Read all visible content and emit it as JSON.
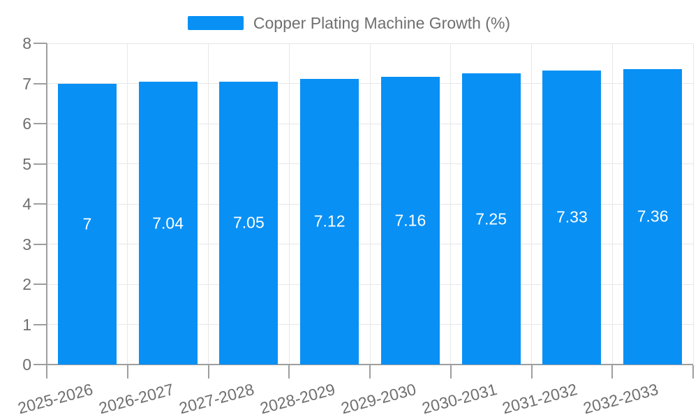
{
  "chart_data": {
    "type": "bar",
    "title": "",
    "legend": {
      "label": "Copper Plating Machine Growth (%)",
      "position": "top-center"
    },
    "categories": [
      "2025-2026",
      "2026-2027",
      "2027-2028",
      "2028-2029",
      "2029-2030",
      "2030-2031",
      "2031-2032",
      "2032-2033"
    ],
    "series": [
      {
        "name": "Copper Plating Machine Growth (%)",
        "values": [
          7,
          7.04,
          7.05,
          7.12,
          7.16,
          7.25,
          7.33,
          7.36
        ],
        "value_labels": [
          "7",
          "7.04",
          "7.05",
          "7.12",
          "7.16",
          "7.25",
          "7.33",
          "7.36"
        ]
      }
    ],
    "xlabel": "",
    "ylabel": "",
    "ylim": [
      0,
      8
    ],
    "yticks": [
      0,
      1,
      2,
      3,
      4,
      5,
      6,
      7,
      8
    ],
    "ytick_labels": [
      "0",
      "1",
      "2",
      "3",
      "4",
      "5",
      "6",
      "7",
      "8"
    ],
    "grid": "on",
    "x_label_rotation_deg": -15,
    "colors": {
      "bar": "#0890F5",
      "bar_label_text": "#ffffff",
      "axis_label_text": "#6F6F6F",
      "legend_text": "#6F6F6F",
      "grid_line": "#E7E7E7",
      "axis_line": "#9E9E9E",
      "background": "#ffffff"
    }
  }
}
